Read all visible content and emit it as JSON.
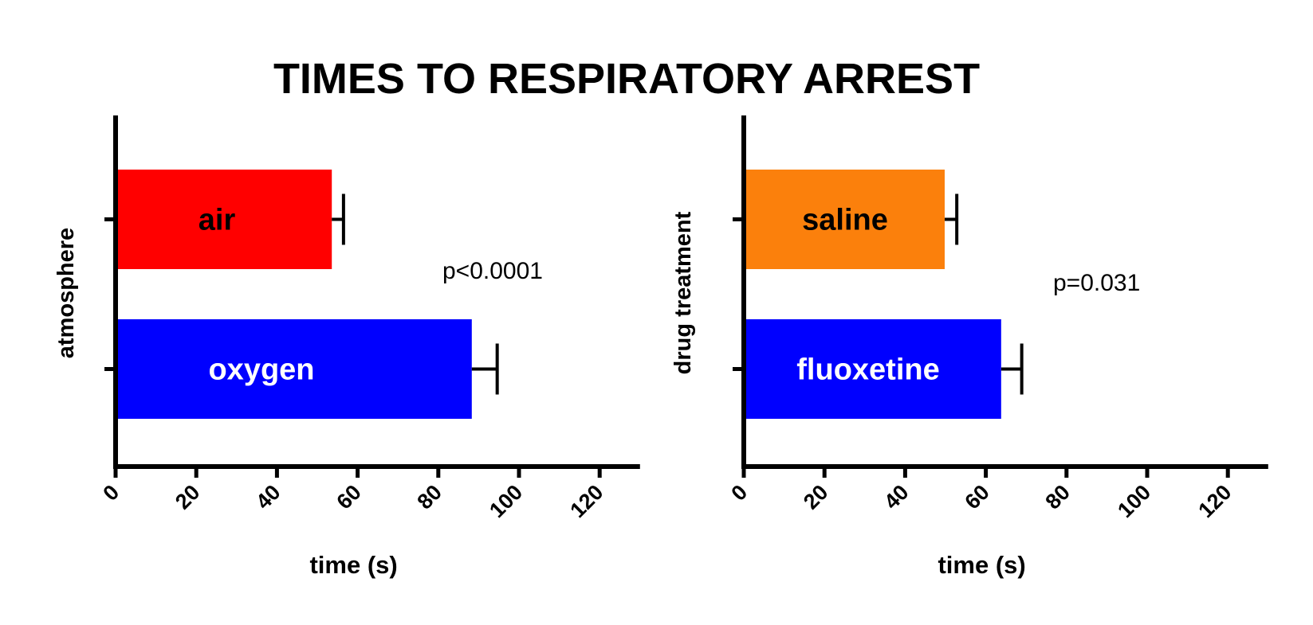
{
  "title": "TIMES TO RESPIRATORY ARREST",
  "chart_data": [
    {
      "type": "bar",
      "orientation": "horizontal",
      "ylabel": "atmosphere",
      "xlabel": "time (s)",
      "xlim": [
        0,
        130
      ],
      "xticks": [
        0,
        20,
        40,
        60,
        80,
        100,
        120
      ],
      "grid": false,
      "annotation": "p<0.0001",
      "categories": [
        "air",
        "oxygen"
      ],
      "values": [
        53.6,
        88.3
      ],
      "error": [
        2.9,
        6.3
      ],
      "colors": [
        "#ff0000",
        "#0000ff"
      ],
      "label_colors": [
        "#000000",
        "#ffffff"
      ]
    },
    {
      "type": "bar",
      "orientation": "horizontal",
      "ylabel": "drug treatment",
      "xlabel": "time (s)",
      "xlim": [
        0,
        130
      ],
      "xticks": [
        0,
        20,
        40,
        60,
        80,
        100,
        120
      ],
      "grid": false,
      "annotation": "p=0.031",
      "categories": [
        "saline",
        "fluoxetine"
      ],
      "values": [
        49.8,
        63.8
      ],
      "error": [
        3.0,
        5.1
      ],
      "colors": [
        "#fb800c",
        "#0000ff"
      ],
      "label_colors": [
        "#000000",
        "#ffffff"
      ]
    }
  ]
}
